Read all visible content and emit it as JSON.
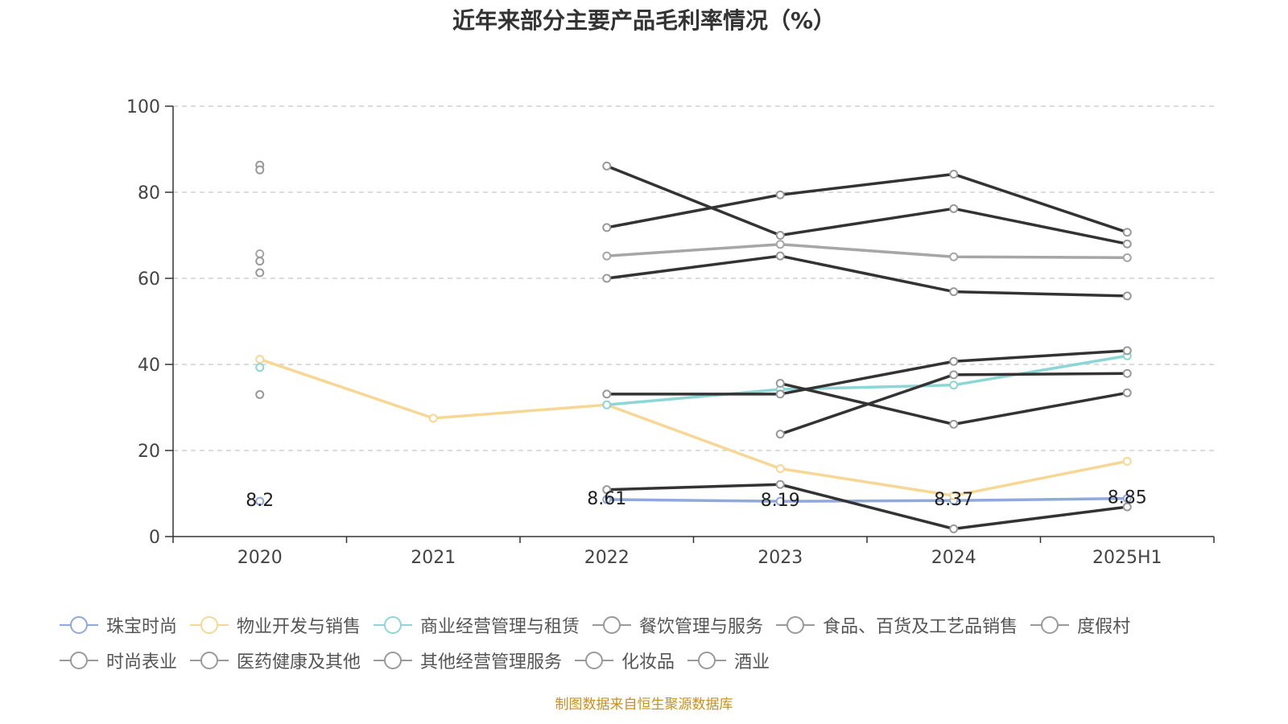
{
  "title": "近年来部分主要产品毛利率情况（%）",
  "source": "制图数据来自恒生聚源数据库",
  "chart_data": {
    "type": "line",
    "categories": [
      "2020",
      "2021",
      "2022",
      "2023",
      "2024",
      "2025H1"
    ],
    "ylim": [
      0,
      100
    ],
    "yticks": [
      0,
      20,
      40,
      60,
      80,
      100
    ],
    "grid": true,
    "legend_position": "bottom",
    "series": [
      {
        "name": "珠宝时尚",
        "color": "#8fa9dc",
        "values": [
          8.2,
          null,
          8.61,
          8.19,
          8.37,
          8.85
        ],
        "labels": true
      },
      {
        "name": "物业开发与销售",
        "color": "#f7d796",
        "values": [
          41.2,
          27.5,
          30.6,
          15.8,
          9.5,
          17.5
        ]
      },
      {
        "name": "商业经营管理与租赁",
        "color": "#8dd6d6",
        "values": [
          39.3,
          null,
          30.6,
          34.2,
          35.2,
          42.0
        ]
      },
      {
        "name": "餐饮管理与服务",
        "color": "#333333",
        "values": [
          61.3,
          null,
          60.0,
          65.2,
          56.9,
          55.9
        ]
      },
      {
        "name": "食品、百货及工艺品销售",
        "color": "#333333",
        "values": [
          33.0,
          null,
          10.9,
          12.1,
          1.8,
          6.9
        ]
      },
      {
        "name": "度假村",
        "color": "#333333",
        "values": [
          null,
          null,
          71.8,
          79.4,
          84.2,
          70.7
        ]
      },
      {
        "name": "时尚表业",
        "color": "#a6a6a6",
        "values": [
          65.7,
          null,
          65.2,
          67.9,
          65.0,
          64.8
        ]
      },
      {
        "name": "医药健康及其他",
        "color": "#333333",
        "values": [
          86.3,
          null,
          86.1,
          70.0,
          76.2,
          68.0
        ]
      },
      {
        "name": "其他经营管理服务",
        "color": "#333333",
        "values": [
          85.2,
          null,
          33.1,
          33.1,
          40.7,
          43.2
        ]
      },
      {
        "name": "化妆品",
        "color": "#333333",
        "values": [
          64.0,
          null,
          null,
          35.6,
          26.1,
          33.4
        ]
      },
      {
        "name": "酒业",
        "color": "#333333",
        "values": [
          null,
          null,
          null,
          23.8,
          37.6,
          37.9
        ]
      }
    ]
  }
}
